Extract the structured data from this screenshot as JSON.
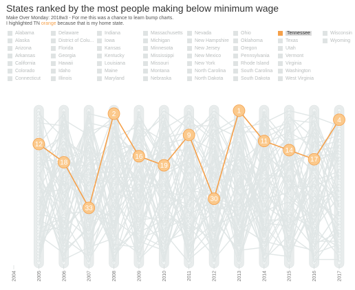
{
  "header": {
    "title": "States ranked by the most people making below minimum wage",
    "subtitle_line1": "Make Over Monday: 2018w3 - For me this was a chance to learn bump charts.",
    "subtitle_line2_pre": "I highlighted TN ",
    "subtitle_line2_accent": "orange",
    "subtitle_line2_post": " because that is my home state."
  },
  "legend": {
    "columns": [
      [
        "Alabama",
        "Alaska",
        "Arizona",
        "Arkansas",
        "California",
        "Colorado",
        "Connecticut"
      ],
      [
        "Delaware",
        "District of Colu...",
        "Florida",
        "Georgia",
        "Hawaii",
        "Idaho",
        "Illinois"
      ],
      [
        "Indiana",
        "Iowa",
        "Kansas",
        "Kentucky",
        "Louisiana",
        "Maine",
        "Maryland"
      ],
      [
        "Massachusetts",
        "Michigan",
        "Minnesota",
        "Mississippi",
        "Missouri",
        "Montana",
        "Nebraska"
      ],
      [
        "Nevada",
        "New Hampshire",
        "New Jersey",
        "New Mexico",
        "New York",
        "North Carolina",
        "North Dakota"
      ],
      [
        "Ohio",
        "Oklahoma",
        "Oregon",
        "Pennsylvania",
        "Rhode Island",
        "South Carolina",
        "South Dakota"
      ],
      [
        "Tennessee",
        "Texas",
        "Utah",
        "Vermont",
        "Virginia",
        "Washington",
        "West Virginia"
      ],
      [
        "Wisconsin",
        "Wyoming"
      ]
    ],
    "selected": "Tennessee"
  },
  "colors": {
    "highlight": "#f5a04a",
    "highlight_fill": "#fbc98c",
    "background_lines": "#e0e6e6",
    "track": "#e8ecec"
  },
  "chart_data": {
    "type": "line",
    "title": "",
    "xlabel": "",
    "ylabel": "",
    "x": [
      "2004",
      "2005",
      "2006",
      "2007",
      "2008",
      "2009",
      "2010",
      "2011",
      "2012",
      "2013",
      "2014",
      "2015",
      "2016",
      "2017"
    ],
    "ylim": [
      1,
      51
    ],
    "y_inverted": true,
    "grid": false,
    "series": [
      {
        "name": "Tennessee",
        "highlighted": true,
        "x": [
          "2005",
          "2006",
          "2007",
          "2008",
          "2009",
          "2010",
          "2011",
          "2012",
          "2013",
          "2014",
          "2015",
          "2016",
          "2017"
        ],
        "values": [
          12,
          18,
          33,
          2,
          16,
          19,
          9,
          30,
          1,
          11,
          14,
          17,
          4
        ]
      }
    ]
  }
}
